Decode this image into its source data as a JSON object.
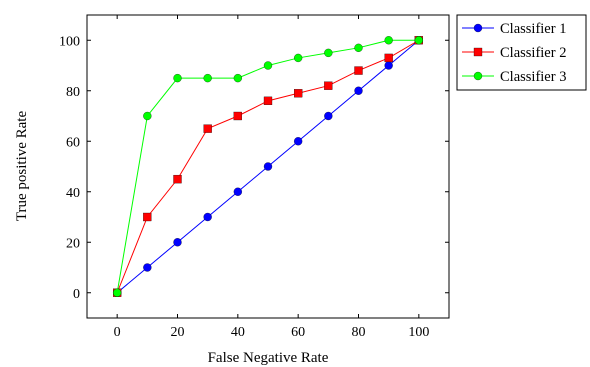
{
  "chart_data": {
    "type": "line",
    "title": "",
    "xlabel": "False Negative Rate",
    "ylabel": "True positive Rate",
    "xlim": [
      -10,
      110
    ],
    "ylim": [
      -10,
      110
    ],
    "xticks": [
      0,
      20,
      40,
      60,
      80,
      100
    ],
    "yticks": [
      0,
      20,
      40,
      60,
      80,
      100
    ],
    "grid": false,
    "legend_position": "outside-top-right",
    "series": [
      {
        "name": "Classifier 1",
        "color": "#0000ff",
        "marker": "circle",
        "x": [
          0,
          10,
          20,
          30,
          40,
          50,
          60,
          70,
          80,
          90,
          100
        ],
        "y": [
          0,
          10,
          20,
          30,
          40,
          50,
          60,
          70,
          80,
          90,
          100
        ]
      },
      {
        "name": "Classifier 2",
        "color": "#ff0000",
        "marker": "square",
        "x": [
          0,
          10,
          20,
          30,
          40,
          50,
          60,
          70,
          80,
          90,
          100
        ],
        "y": [
          0,
          30,
          45,
          65,
          70,
          76,
          79,
          82,
          88,
          93,
          100
        ]
      },
      {
        "name": "Classifier 3",
        "color": "#00ff00",
        "marker": "circle",
        "x": [
          0,
          10,
          20,
          30,
          40,
          50,
          60,
          70,
          80,
          90,
          100
        ],
        "y": [
          0,
          70,
          85,
          85,
          85,
          90,
          93,
          95,
          97,
          100,
          100
        ]
      }
    ]
  }
}
